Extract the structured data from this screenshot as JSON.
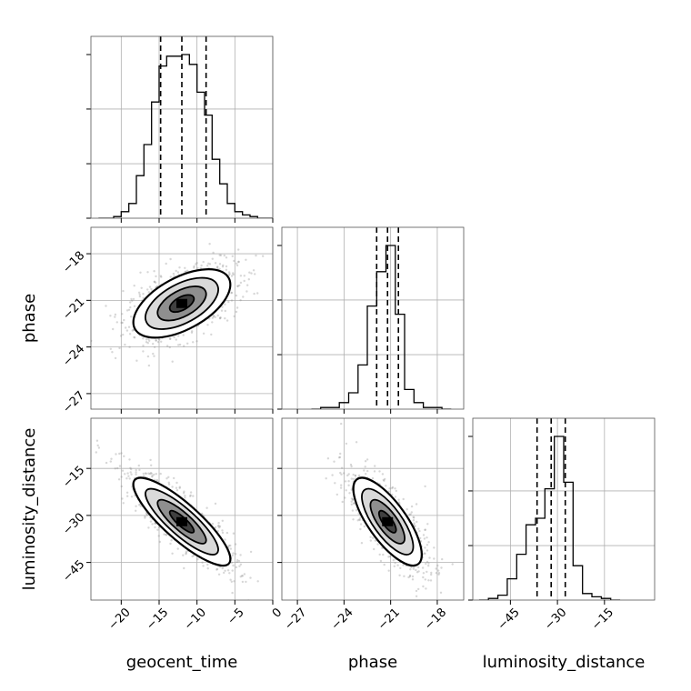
{
  "chart_data": {
    "type": "corner",
    "parameters": [
      "geocent_time",
      "phase",
      "luminosity_distance"
    ],
    "axis_labels": {
      "x": [
        "geocent_time",
        "phase",
        "luminosity_distance"
      ],
      "y": [
        "",
        "phase",
        "luminosity_distance"
      ]
    },
    "ranges": {
      "geocent_time": [
        -24.0,
        0.0
      ],
      "phase": [
        -28.0,
        -16.3
      ],
      "luminosity_distance": [
        -57.0,
        1.0
      ]
    },
    "ticks": {
      "geocent_time": [
        -20,
        -15,
        -10,
        -5,
        0
      ],
      "phase": [
        -27,
        -24,
        -21,
        -18
      ],
      "luminosity_distance": [
        -45,
        -30,
        -15
      ]
    },
    "quantiles": {
      "geocent_time": [
        -14.8,
        -12.0,
        -8.8
      ],
      "phase": [
        -21.9,
        -21.2,
        -20.5
      ],
      "luminosity_distance": [
        -36.5,
        -32.0,
        -27.5
      ]
    },
    "histograms": {
      "geocent_time": {
        "bin_edges": [
          -23,
          -22,
          -21,
          -20,
          -19,
          -18,
          -17,
          -16,
          -15,
          -14,
          -13,
          -12,
          -11,
          -10,
          -9,
          -8,
          -7,
          -6,
          -5,
          -4,
          -3,
          -2,
          -1,
          0
        ],
        "counts": [
          0.0,
          0.0,
          0.01,
          0.04,
          0.09,
          0.26,
          0.45,
          0.71,
          0.93,
          0.99,
          0.99,
          1.0,
          0.94,
          0.77,
          0.63,
          0.36,
          0.21,
          0.09,
          0.04,
          0.02,
          0.01,
          0.0,
          0.0
        ]
      },
      "phase": {
        "bin_edges": [
          -26.1,
          -25.5,
          -24.9,
          -24.3,
          -23.7,
          -23.1,
          -22.5,
          -21.9,
          -21.3,
          -20.7,
          -20.1,
          -19.5,
          -18.9,
          -18.3,
          -17.7,
          -17.1
        ],
        "counts": [
          0.0,
          0.01,
          0.01,
          0.04,
          0.1,
          0.27,
          0.63,
          0.84,
          1.0,
          0.58,
          0.12,
          0.04,
          0.01,
          0.01,
          0.0
        ]
      },
      "luminosity_distance": {
        "bin_edges": [
          -55,
          -52,
          -49,
          -46,
          -43,
          -40,
          -37,
          -34,
          -31,
          -28,
          -25,
          -22,
          -19,
          -16,
          -13,
          -10
        ],
        "counts": [
          0.0,
          0.01,
          0.03,
          0.13,
          0.28,
          0.46,
          0.5,
          0.68,
          1.0,
          0.72,
          0.21,
          0.04,
          0.02,
          0.01,
          0.0
        ]
      }
    },
    "posterior": {
      "means": [
        -12.0,
        -21.2,
        -32.0
      ],
      "std": [
        3.2,
        1.1,
        7.0
      ],
      "correlation": [
        [
          1.0,
          0.55,
          -0.85
        ],
        [
          0.55,
          1.0,
          -0.75
        ],
        [
          -0.85,
          -0.75,
          1.0
        ]
      ]
    },
    "contour_levels": [
      0.5,
      1.0,
      1.5,
      2.0
    ],
    "grid": true
  }
}
